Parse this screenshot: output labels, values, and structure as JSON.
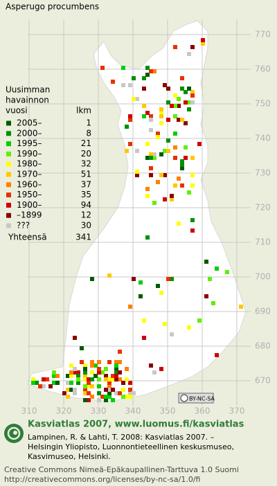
{
  "title": "Asperugo procumbens",
  "legend": {
    "heading": [
      "Uusimman",
      "havainnon",
      "vuosi"
    ],
    "count_heading": "lkm",
    "rows": [
      {
        "label": "2005–",
        "count": 1,
        "color": "#005a00"
      },
      {
        "label": "2000–",
        "count": 8,
        "color": "#009000"
      },
      {
        "label": "1995–",
        "count": 21,
        "color": "#00d000"
      },
      {
        "label": "1990–",
        "count": 20,
        "color": "#60f000"
      },
      {
        "label": "1980–",
        "count": 32,
        "color": "#ffff00"
      },
      {
        "label": "1970–",
        "count": 51,
        "color": "#ffc800"
      },
      {
        "label": "1960–",
        "count": 37,
        "color": "#ff8000"
      },
      {
        "label": "1950–",
        "count": 35,
        "color": "#e83000"
      },
      {
        "label": "1900–",
        "count": 94,
        "color": "#d00000"
      },
      {
        "label": "–1899",
        "count": 12,
        "color": "#8a0000"
      },
      {
        "label": "???",
        "count": 30,
        "color": "#c8c8c8"
      }
    ],
    "total": {
      "label": "Yhteensä",
      "count": 341
    }
  },
  "map": {
    "y_labels": [
      770,
      760,
      750,
      740,
      730,
      720,
      710,
      700,
      690,
      680,
      670
    ],
    "x_labels": [
      310,
      320,
      330,
      340,
      350,
      360,
      370
    ]
  },
  "badge": "BY-NC-SA",
  "footer": {
    "heading": "Kasviatlas 2007, www.luomus.fi/kasviatlas",
    "citation": [
      "Lampinen, R. & Lahti, T. 2008: Kasviatlas 2007. –",
      "Helsingin Yliopisto, Luonnontieteellinen keskusmuseo,",
      "Kasvimuseo, Helsinki."
    ],
    "license": [
      "Creative Commons Nimeä-Epäkaupallinen-Tarttuva 1.0 Suomi",
      "http://creativecommons.org/licenses/by-nc-sa/1.0/fi"
    ]
  }
}
